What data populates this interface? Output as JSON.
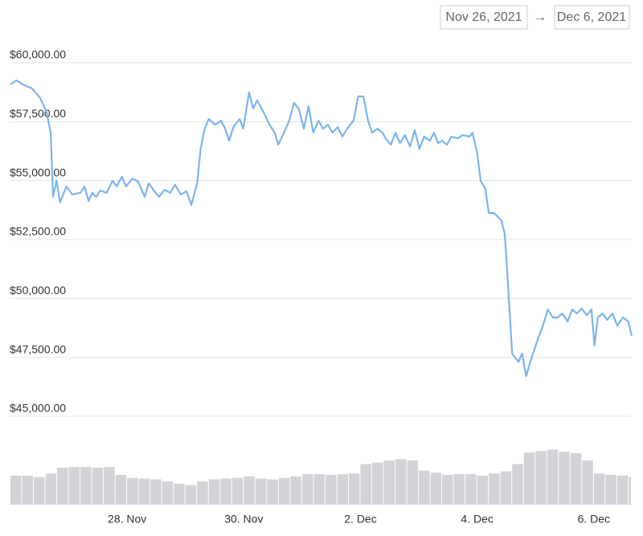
{
  "chart_data": {
    "type": "line",
    "range": {
      "from": "Nov 26, 2021",
      "separator": "→",
      "to": "Dec 6, 2021"
    },
    "xlim": [
      0,
      10.65
    ],
    "xticks": [
      {
        "value": 2,
        "label": "28. Nov"
      },
      {
        "value": 4,
        "label": "30. Nov"
      },
      {
        "value": 6,
        "label": "2. Dec"
      },
      {
        "value": 8,
        "label": "4. Dec"
      },
      {
        "value": 10,
        "label": "6. Dec"
      }
    ],
    "ylim": [
      45000,
      60000
    ],
    "yticks": [
      {
        "value": 45000,
        "label": "$45,000.00"
      },
      {
        "value": 47500,
        "label": "$47,500.00"
      },
      {
        "value": 50000,
        "label": "$50,000.00"
      },
      {
        "value": 52500,
        "label": "$52,500.00"
      },
      {
        "value": 55000,
        "label": "$55,000.00"
      },
      {
        "value": 57500,
        "label": "$57,500.00"
      },
      {
        "value": 60000,
        "label": "$60,000.00"
      }
    ],
    "grid": true,
    "series": [
      {
        "color": "#7cb5ec",
        "x": [
          0,
          0.1,
          0.23,
          0.37,
          0.51,
          0.62,
          0.69,
          0.73,
          0.79,
          0.85,
          0.96,
          1.06,
          1.2,
          1.27,
          1.34,
          1.4,
          1.47,
          1.54,
          1.65,
          1.75,
          1.82,
          1.91,
          1.98,
          2.09,
          2.19,
          2.3,
          2.37,
          2.47,
          2.55,
          2.64,
          2.74,
          2.82,
          2.92,
          3.02,
          3.1,
          3.2,
          3.26,
          3.33,
          3.4,
          3.51,
          3.61,
          3.68,
          3.75,
          3.82,
          3.93,
          3.99,
          4.09,
          4.16,
          4.23,
          4.34,
          4.44,
          4.53,
          4.59,
          4.67,
          4.78,
          4.86,
          4.94,
          5.03,
          5.11,
          5.19,
          5.28,
          5.36,
          5.44,
          5.52,
          5.61,
          5.69,
          5.77,
          5.88,
          5.96,
          6.05,
          6.13,
          6.2,
          6.29,
          6.38,
          6.43,
          6.52,
          6.6,
          6.68,
          6.76,
          6.85,
          6.93,
          7.01,
          7.09,
          7.19,
          7.26,
          7.33,
          7.4,
          7.48,
          7.56,
          7.67,
          7.75,
          7.87,
          7.92,
          8.0,
          8.06,
          8.14,
          8.2,
          8.29,
          8.36,
          8.42,
          8.47,
          8.5,
          8.55,
          8.6,
          8.65,
          8.71,
          8.77,
          8.84,
          8.91,
          8.98,
          9.05,
          9.13,
          9.21,
          9.3,
          9.38,
          9.46,
          9.55,
          9.63,
          9.71,
          9.79,
          9.88,
          9.96,
          10.01,
          10.07,
          10.15,
          10.23,
          10.32,
          10.4,
          10.5,
          10.59,
          10.65
        ],
        "values": [
          59080,
          59250,
          59050,
          58910,
          58500,
          57890,
          57030,
          54310,
          54990,
          54070,
          54750,
          54410,
          54480,
          54750,
          54130,
          54480,
          54310,
          54580,
          54480,
          54990,
          54750,
          55160,
          54750,
          55090,
          54950,
          54310,
          54880,
          54540,
          54310,
          54610,
          54480,
          54820,
          54410,
          54540,
          53960,
          54880,
          56350,
          57200,
          57610,
          57370,
          57540,
          57200,
          56690,
          57270,
          57610,
          57200,
          58740,
          58060,
          58400,
          57890,
          57370,
          57030,
          56520,
          56930,
          57540,
          58300,
          58060,
          57200,
          58160,
          57030,
          57540,
          57200,
          57370,
          57030,
          57270,
          56860,
          57200,
          57540,
          58570,
          58570,
          57540,
          57030,
          57200,
          57030,
          56790,
          56520,
          57030,
          56590,
          56930,
          56450,
          57140,
          56350,
          56860,
          56690,
          57030,
          56590,
          56690,
          56520,
          56860,
          56790,
          56930,
          56860,
          57030,
          56180,
          54990,
          54650,
          53620,
          53620,
          53450,
          53280,
          52770,
          51750,
          49700,
          47660,
          47490,
          47310,
          47660,
          46700,
          47310,
          47830,
          48340,
          48850,
          49530,
          49190,
          49190,
          49360,
          49020,
          49530,
          49360,
          49570,
          49290,
          49530,
          48000,
          49190,
          49360,
          49090,
          49360,
          48850,
          49190,
          49020,
          48410
        ]
      }
    ],
    "volume": {
      "color": "#d4d4d8",
      "y2lim": [
        0,
        100
      ],
      "bin": 0.2,
      "x": [
        0,
        0.2,
        0.4,
        0.6,
        0.8,
        1.0,
        1.2,
        1.4,
        1.6,
        1.8,
        2.0,
        2.2,
        2.4,
        2.6,
        2.8,
        3.0,
        3.2,
        3.4,
        3.6,
        3.8,
        4.0,
        4.2,
        4.4,
        4.6,
        4.8,
        5.0,
        5.2,
        5.4,
        5.6,
        5.8,
        6.0,
        6.2,
        6.4,
        6.6,
        6.8,
        7.0,
        7.2,
        7.4,
        7.6,
        7.8,
        8.0,
        8.2,
        8.4,
        8.6,
        8.8,
        9.0,
        9.2,
        9.4,
        9.6,
        9.8,
        10.0,
        10.2,
        10.4,
        10.6
      ],
      "values": [
        39,
        39,
        37,
        42,
        50,
        51,
        51,
        50,
        51,
        40,
        36,
        35,
        34,
        31,
        28,
        26,
        31,
        34,
        35,
        36,
        38,
        35,
        34,
        36,
        38,
        41,
        41,
        40,
        41,
        42,
        55,
        57,
        60,
        62,
        60,
        46,
        43,
        40,
        41,
        41,
        39,
        42,
        45,
        55,
        71,
        73,
        75,
        72,
        70,
        60,
        42,
        40,
        39,
        37
      ]
    }
  }
}
